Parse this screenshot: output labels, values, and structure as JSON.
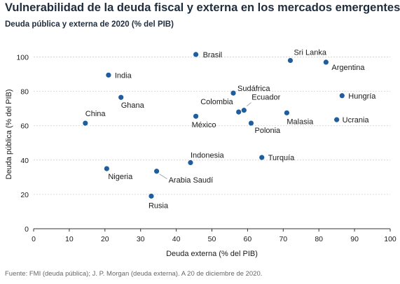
{
  "chart_data": {
    "type": "scatter",
    "title": "Vulnerabilidad de la deuda fiscal y externa en los mercados emergentes¹",
    "subtitle": "Deuda pública y externa de 2020 (% del PIB)",
    "xlabel": "Deuda externa (% del PIB)",
    "ylabel": "Deuda pública (% del PIB)",
    "xlim": [
      0,
      100
    ],
    "ylim": [
      0,
      110
    ],
    "xticks": [
      0,
      10,
      20,
      30,
      40,
      50,
      60,
      70,
      80,
      90,
      100
    ],
    "yticks": [
      0,
      20,
      40,
      60,
      80,
      100
    ],
    "grid": "y",
    "point_color": "#1f5e9e",
    "points": [
      {
        "label": "Brasil",
        "x": 45.5,
        "y": 101.5
      },
      {
        "label": "Sri Lanka",
        "x": 72,
        "y": 98
      },
      {
        "label": "Argentina",
        "x": 82,
        "y": 97
      },
      {
        "label": "India",
        "x": 21,
        "y": 89.5
      },
      {
        "label": "Sudáfrica",
        "x": 56,
        "y": 79
      },
      {
        "label": "Hungría",
        "x": 86.5,
        "y": 77.5
      },
      {
        "label": "Ghana",
        "x": 24.5,
        "y": 76.5
      },
      {
        "label": "Ecuador",
        "x": 59,
        "y": 69
      },
      {
        "label": "Colombia",
        "x": 57.5,
        "y": 68
      },
      {
        "label": "Malasia",
        "x": 71,
        "y": 67.5
      },
      {
        "label": "México",
        "x": 45.5,
        "y": 65.5
      },
      {
        "label": "Ucrania",
        "x": 85,
        "y": 63.5
      },
      {
        "label": "China",
        "x": 14.5,
        "y": 61.5
      },
      {
        "label": "Polonia",
        "x": 61,
        "y": 61.5
      },
      {
        "label": "Turquía",
        "x": 64,
        "y": 41.5
      },
      {
        "label": "Indonesia",
        "x": 44,
        "y": 38.5
      },
      {
        "label": "Nigeria",
        "x": 20.5,
        "y": 35
      },
      {
        "label": "Arabia Saudí",
        "x": 34.5,
        "y": 33.5
      },
      {
        "label": "Rusia",
        "x": 33,
        "y": 19
      }
    ],
    "source": "Fuente: FMI (deuda pública); J. P. Morgan (deuda externa). A 20 de diciembre de 2020."
  }
}
